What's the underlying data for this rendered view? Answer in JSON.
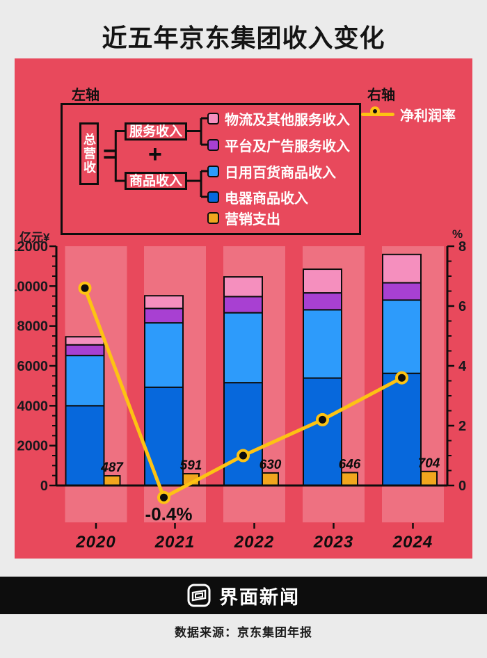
{
  "title": "近五年京东集团收入变化",
  "colors": {
    "page_bg": "#EBEBEB",
    "poster_red": "#E8495C",
    "band": "#EE7181",
    "black": "#0D0D0D",
    "white": "#FFFFFF"
  },
  "legend": {
    "left_axis_note": "左轴",
    "right_axis_note": "右轴",
    "total_label": "总营收",
    "equals_sign": "=",
    "plus_sign": "+",
    "service_label": "服务收入",
    "goods_label": "商品收入",
    "items": [
      {
        "label": "物流及其他服务收入",
        "color": "#F58FBE"
      },
      {
        "label": "平台及广告服务收入",
        "color": "#A840D2"
      },
      {
        "label": "日用百货商品收入",
        "color": "#2D9BFB"
      },
      {
        "label": "电器商品收入",
        "color": "#0768DC"
      },
      {
        "label": "营销支出",
        "color": "#F1A61E"
      }
    ],
    "line_label": "净利润率"
  },
  "chart_data": {
    "type": "combo (stacked bar + bar + line)",
    "categories": [
      "2020",
      "2021",
      "2022",
      "2023",
      "2024"
    ],
    "left_axis": {
      "unit_label": "亿元¥",
      "min": 0,
      "max": 12000,
      "tick_step": 2000,
      "minor_step": 500
    },
    "right_axis": {
      "unit_label": "%",
      "min": 0,
      "max": 8,
      "tick_step": 2,
      "minor_step": 0.5
    },
    "stack_series": [
      {
        "name": "电器商品收入",
        "color": "#0768DC",
        "values": [
          4001,
          4927,
          5158,
          5388,
          5626
        ]
      },
      {
        "name": "日用百货商品收入",
        "color": "#2D9BFB",
        "values": [
          2518,
          3231,
          3506,
          3425,
          3674
        ]
      },
      {
        "name": "平台及广告服务收入",
        "color": "#A840D2",
        "values": [
          535,
          721,
          811,
          847,
          867
        ]
      },
      {
        "name": "物流及其他服务收入",
        "color": "#F58FBE",
        "values": [
          404,
          637,
          987,
          1187,
          1421
        ]
      }
    ],
    "marketing_series": {
      "name": "营销支出",
      "color": "#F1A61E",
      "values": [
        487,
        591,
        630,
        646,
        704
      ],
      "labels": [
        "487",
        "591",
        "630",
        "646",
        "704"
      ]
    },
    "line_series": {
      "name": "净利润率",
      "axis": "right",
      "color": "#FDC313",
      "values": [
        6.6,
        -0.4,
        1.0,
        2.2,
        3.6
      ]
    },
    "annotation": {
      "text": "-0.4%",
      "index": 1
    },
    "legend_position": "top",
    "grid": false
  },
  "footer": {
    "brand": "界面新闻",
    "source": "数据来源：京东集团年报"
  }
}
